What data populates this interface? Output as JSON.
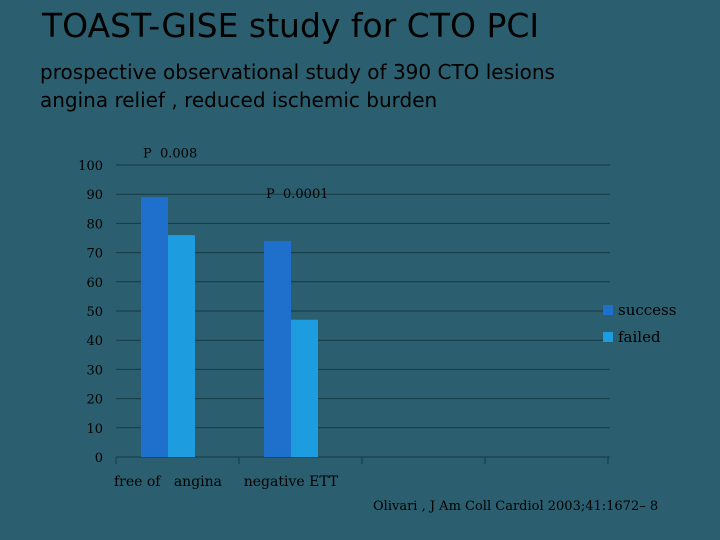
{
  "slide": {
    "title": "TOAST-GISE study for CTO PCI",
    "subtitle_lines": [
      "prospective observational study of 390 CTO lesions",
      " angina relief ,  reduced ischemic burden"
    ],
    "citation": "Olivari , J Am Coll Cardiol 2003;41:1672– 8"
  },
  "colors": {
    "background": "#2b5f6f",
    "success": "#1f6fcc",
    "failed": "#1e9ce0",
    "gridline": "#163a45",
    "text": "#000000"
  },
  "chart_data": {
    "type": "bar",
    "categories": [
      "free of   angina",
      "negative ETT"
    ],
    "series": [
      {
        "name": "success",
        "values": [
          89,
          74
        ]
      },
      {
        "name": "failed",
        "values": [
          76,
          47
        ]
      }
    ],
    "ylim": [
      0,
      100
    ],
    "yticks": [
      0,
      10,
      20,
      30,
      40,
      50,
      60,
      70,
      80,
      90,
      100
    ],
    "legend_position": "right",
    "grid": true,
    "annotations": [
      {
        "text": "P  0.008",
        "category": 0,
        "value": 104
      },
      {
        "text": "P  0.0001",
        "category": 1,
        "value": 90
      }
    ]
  }
}
